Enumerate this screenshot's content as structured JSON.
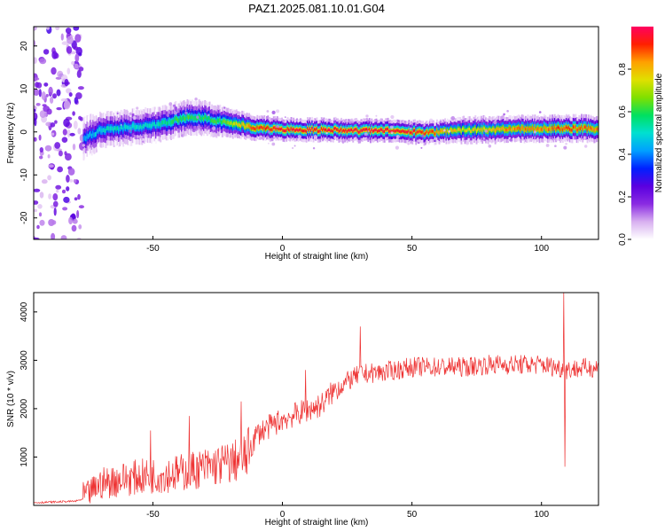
{
  "title": "PAZ1.2025.081.10.01.G04",
  "chart_data": [
    {
      "type": "heatmap",
      "xlabel": "Height of straight line (km)",
      "ylabel": "Frequency (Hz)",
      "xlim": [
        -96,
        122
      ],
      "ylim": [
        -25,
        24.5
      ],
      "xticks": [
        -50,
        0,
        50,
        100
      ],
      "yticks": [
        -20,
        -10,
        0,
        10,
        20
      ],
      "colorbar": {
        "label": "Normalized spectral amplitude",
        "range": [
          0,
          1
        ],
        "ticks": [
          0.0,
          0.2,
          0.4,
          0.6,
          0.8
        ],
        "colors": [
          "#ffffff",
          "#d8b0f0",
          "#8a2be2",
          "#5a00e0",
          "#0020ff",
          "#00a0ff",
          "#00e0d0",
          "#00e060",
          "#80e000",
          "#e0e000",
          "#ffa000",
          "#ff2000",
          "#ff0060"
        ]
      },
      "noise_region_x": [
        -96,
        -77
      ],
      "ridge": {
        "x": [
          -77,
          -70,
          -60,
          -50,
          -40,
          -33,
          -25,
          -15,
          -10,
          0,
          10,
          20,
          30,
          40,
          50,
          55,
          60,
          70,
          80,
          90,
          100,
          110,
          122
        ],
        "y": [
          -1.5,
          0.5,
          1.0,
          1.5,
          3.0,
          3.5,
          2.5,
          1.5,
          1.0,
          0.5,
          0.5,
          0.5,
          0.3,
          0.3,
          0.0,
          -0.3,
          0.0,
          0.5,
          0.5,
          0.7,
          0.8,
          0.8,
          0.8
        ],
        "peak_amplitude": [
          0.4,
          0.5,
          0.5,
          0.5,
          0.6,
          0.6,
          0.6,
          0.8,
          0.9,
          0.95,
          0.95,
          0.95,
          0.95,
          0.95,
          0.95,
          0.9,
          0.85,
          0.75,
          0.8,
          0.85,
          0.85,
          0.9,
          0.85
        ],
        "width_hz": [
          2.5,
          2.0,
          2.0,
          2.0,
          2.0,
          2.0,
          1.8,
          1.5,
          1.4,
          1.3,
          1.3,
          1.3,
          1.3,
          1.3,
          1.3,
          1.3,
          1.3,
          1.5,
          1.5,
          1.5,
          1.5,
          1.5,
          1.5
        ]
      }
    },
    {
      "type": "line",
      "xlabel": "Height of straight line (km)",
      "ylabel": "SNR (10 * v/v)",
      "xlim": [
        -96,
        122
      ],
      "ylim": [
        0,
        4400
      ],
      "xticks": [
        -50,
        0,
        50,
        100
      ],
      "yticks": [
        1000,
        2000,
        3000,
        4000
      ],
      "color": "#ee3333",
      "trend": {
        "x": [
          -96,
          -80,
          -75,
          -70,
          -60,
          -50,
          -40,
          -30,
          -20,
          -14,
          -10,
          0,
          10,
          15,
          20,
          25,
          30,
          40,
          50,
          60,
          70,
          80,
          90,
          100,
          110,
          122
        ],
        "y": [
          50,
          80,
          150,
          350,
          450,
          500,
          550,
          650,
          750,
          850,
          1400,
          1700,
          1900,
          2000,
          2300,
          2500,
          2650,
          2700,
          2800,
          2800,
          2800,
          2850,
          2850,
          2850,
          2750,
          2800
        ]
      },
      "spikes": [
        {
          "x": -51,
          "y": 1550
        },
        {
          "x": -36,
          "y": 1850
        },
        {
          "x": -16,
          "y": 2150
        },
        {
          "x": 9,
          "y": 2800
        },
        {
          "x": 30,
          "y": 3700
        },
        {
          "x": 108.5,
          "y": 4400
        },
        {
          "x": 109,
          "y": 800
        }
      ]
    }
  ]
}
